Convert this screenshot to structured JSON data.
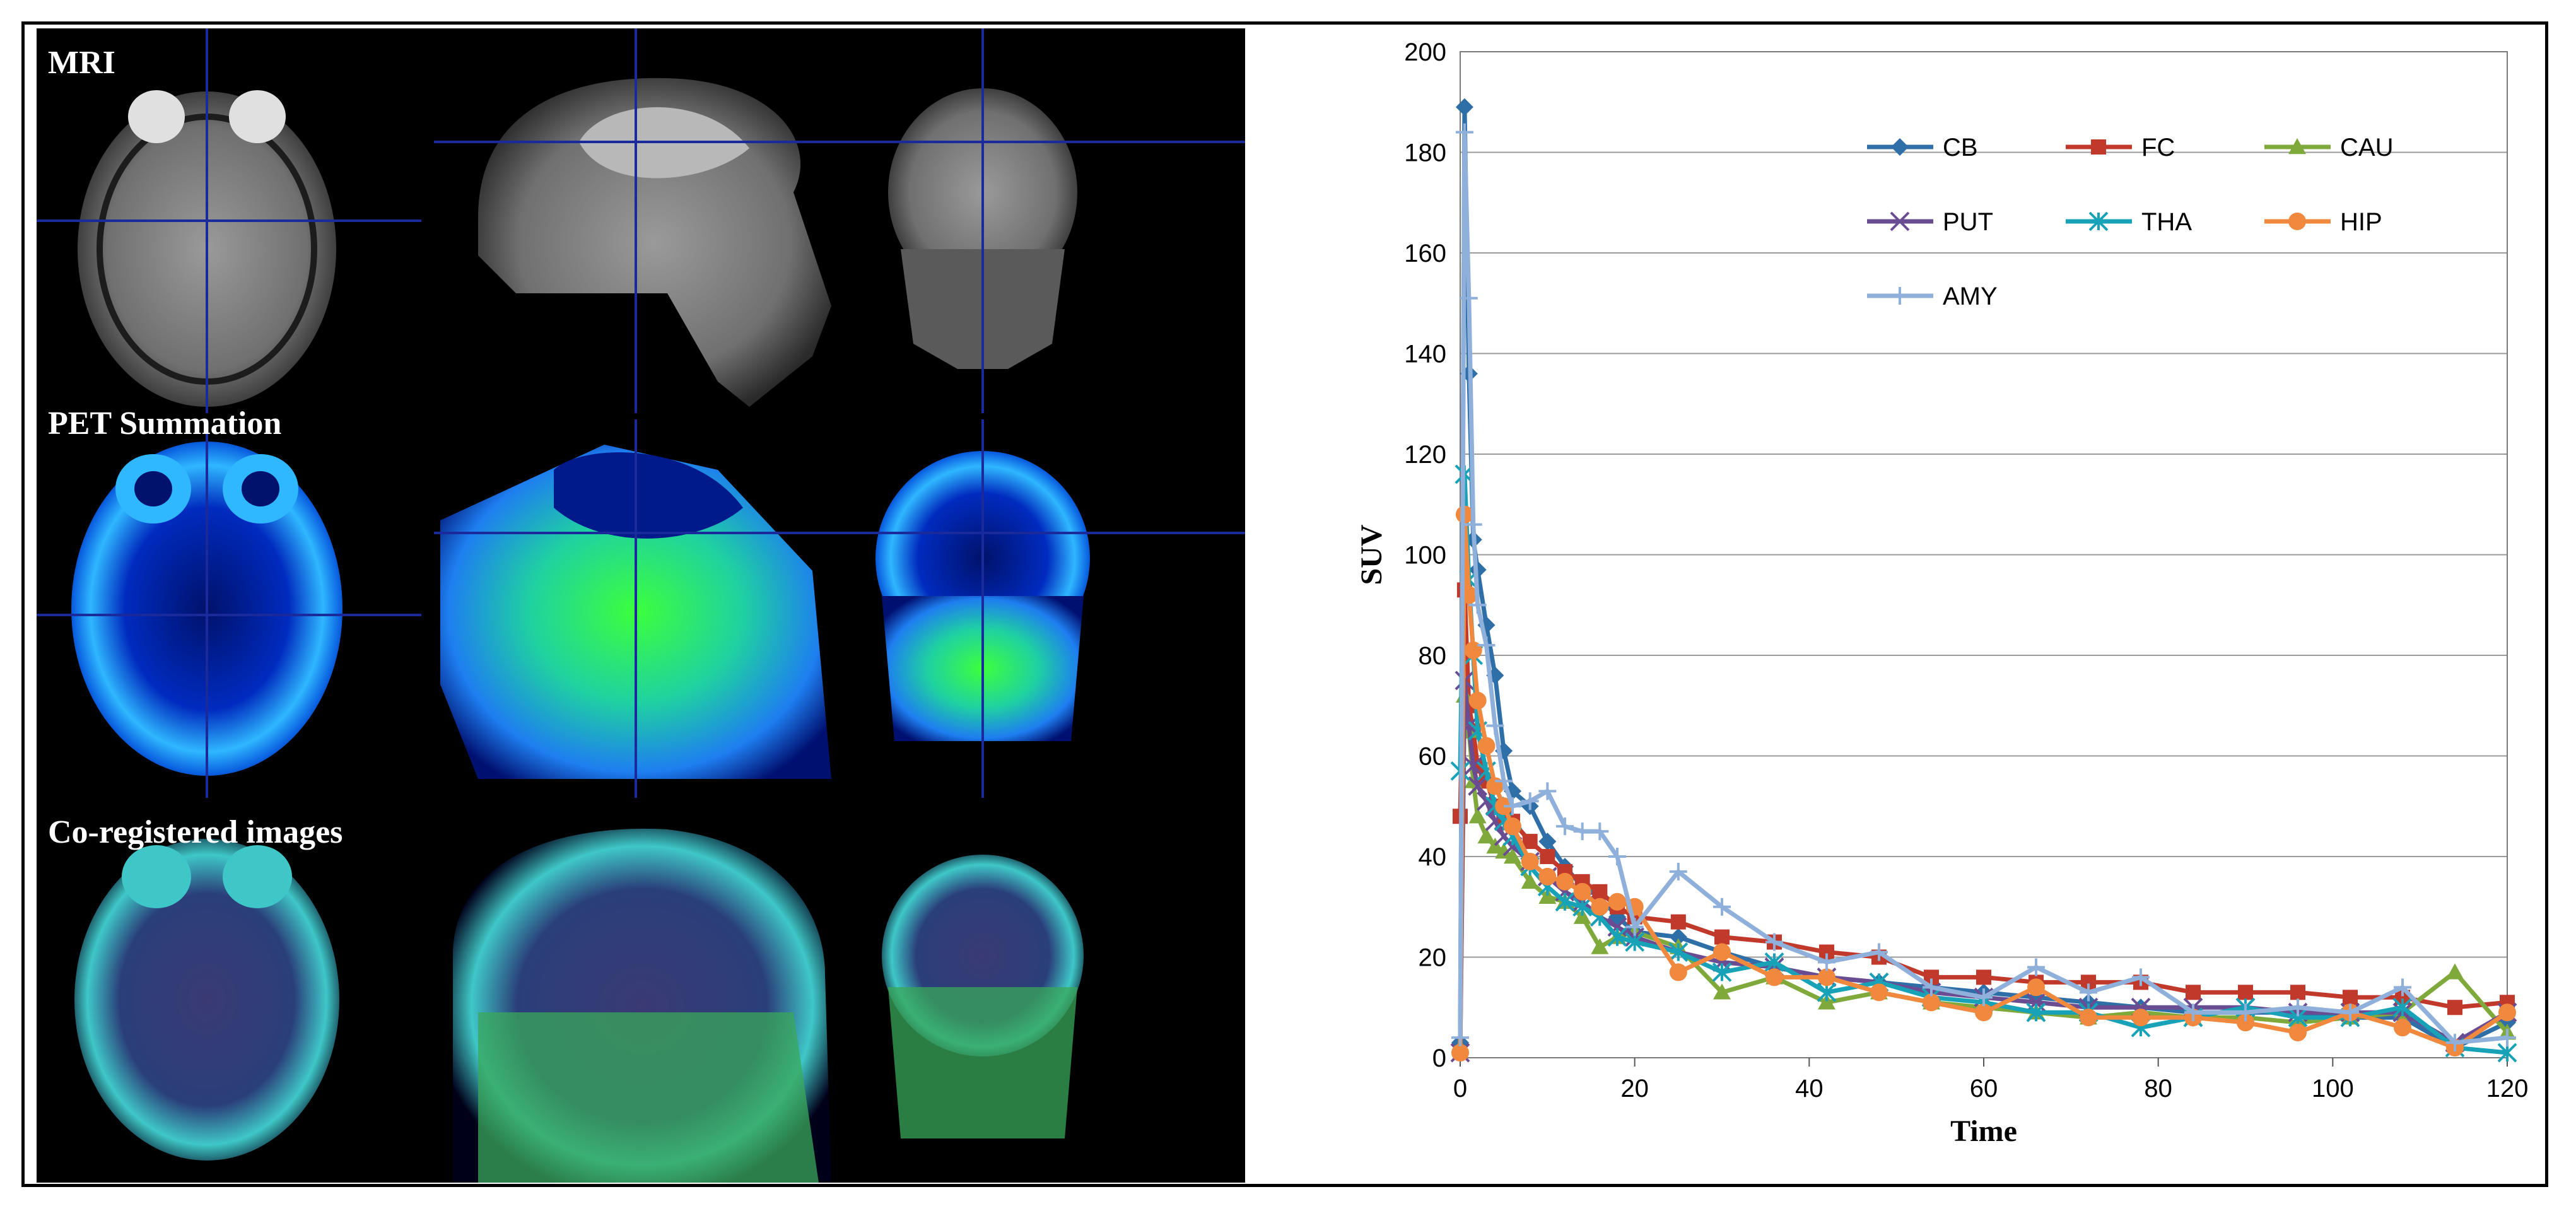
{
  "panels": {
    "row_labels": [
      "MRI",
      "PET Summation",
      "Co-registered images"
    ]
  },
  "chart_data": {
    "type": "line",
    "xlabel": "Time",
    "ylabel": "SUV",
    "xlim": [
      0,
      120
    ],
    "ylim": [
      0,
      200
    ],
    "xticks": [
      0,
      20,
      40,
      60,
      80,
      100,
      120
    ],
    "yticks": [
      0,
      20,
      40,
      60,
      80,
      100,
      120,
      140,
      160,
      180,
      200
    ],
    "grid": "horizontal",
    "legend_position": "top-right",
    "x": [
      0,
      0.5,
      1,
      1.5,
      2,
      3,
      4,
      5,
      6,
      8,
      10,
      12,
      14,
      16,
      18,
      20,
      25,
      30,
      36,
      42,
      48,
      54,
      60,
      66,
      72,
      78,
      84,
      90,
      96,
      102,
      108,
      114,
      120
    ],
    "series": [
      {
        "name": "CB",
        "color": "#2f6fa8",
        "marker": "diamond",
        "values": [
          3,
          189,
          136,
          103,
          97,
          86,
          76,
          61,
          53,
          50,
          43,
          38,
          34,
          32,
          28,
          25,
          24,
          21,
          18,
          16,
          15,
          14,
          13,
          12,
          11,
          10,
          9,
          9,
          9,
          8,
          8,
          2,
          7
        ]
      },
      {
        "name": "FC",
        "color": "#c0392b",
        "marker": "square",
        "values": [
          48,
          93,
          70,
          65,
          58,
          55,
          50,
          48,
          47,
          43,
          40,
          37,
          35,
          33,
          30,
          28,
          27,
          24,
          23,
          21,
          20,
          16,
          16,
          15,
          15,
          15,
          13,
          13,
          13,
          12,
          12,
          10,
          11
        ]
      },
      {
        "name": "CAU",
        "color": "#7faa3b",
        "marker": "triangle",
        "values": [
          2,
          72,
          65,
          55,
          48,
          44,
          42,
          41,
          40,
          35,
          32,
          31,
          28,
          22,
          24,
          25,
          22,
          13,
          16,
          11,
          13,
          11,
          10,
          9,
          8,
          9,
          8,
          8,
          7,
          8,
          9,
          17,
          5
        ]
      },
      {
        "name": "PUT",
        "color": "#6a4c93",
        "marker": "x",
        "values": [
          1,
          75,
          66,
          58,
          54,
          51,
          47,
          44,
          42,
          39,
          36,
          33,
          31,
          28,
          26,
          24,
          21,
          19,
          18,
          16,
          15,
          13,
          12,
          11,
          10,
          10,
          10,
          10,
          9,
          9,
          9,
          3,
          9
        ]
      },
      {
        "name": "THA",
        "color": "#17a2b8",
        "marker": "asterisk",
        "values": [
          57,
          116,
          95,
          80,
          65,
          57,
          50,
          47,
          44,
          38,
          34,
          31,
          30,
          28,
          24,
          23,
          21,
          17,
          19,
          13,
          15,
          12,
          11,
          9,
          9,
          6,
          8,
          10,
          8,
          8,
          10,
          2,
          1
        ]
      },
      {
        "name": "HIP",
        "color": "#f0883e",
        "marker": "circle",
        "values": [
          1,
          108,
          92,
          81,
          71,
          62,
          54,
          50,
          46,
          39,
          36,
          35,
          33,
          30,
          31,
          30,
          17,
          21,
          16,
          16,
          13,
          11,
          9,
          14,
          8,
          8,
          8,
          7,
          5,
          9,
          6,
          2,
          9
        ]
      },
      {
        "name": "AMY",
        "color": "#8fb0da",
        "marker": "plus",
        "values": [
          4,
          184,
          151,
          106,
          90,
          82,
          66,
          55,
          50,
          51,
          53,
          46,
          45,
          45,
          40,
          26,
          37,
          30,
          23,
          19,
          21,
          14,
          12,
          18,
          13,
          16,
          9,
          9,
          10,
          9,
          14,
          3,
          4
        ]
      }
    ]
  }
}
